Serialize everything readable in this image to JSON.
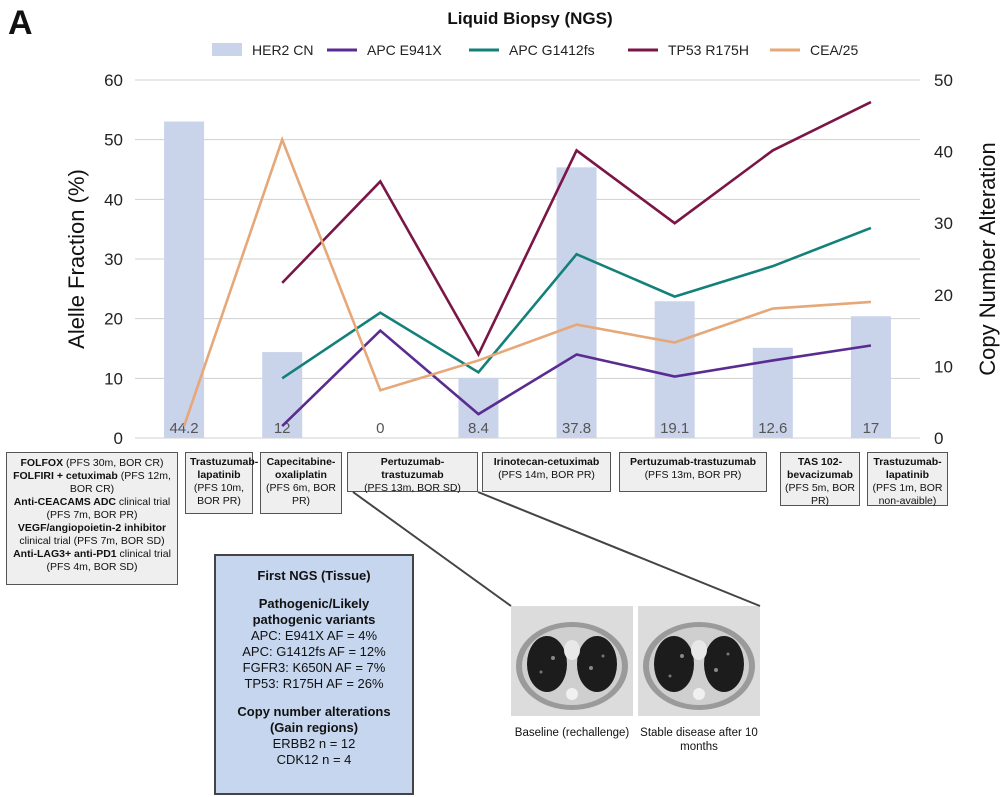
{
  "panel_letter": "A",
  "chart_data": {
    "type": "bar",
    "title": "Liquid Biopsy (NGS)",
    "ylabel": "Alelle Fraction (%)",
    "y2label": "Copy Number Alteration",
    "ylim": [
      0,
      60
    ],
    "y2lim": [
      0,
      50
    ],
    "yticks": [
      0,
      10,
      20,
      30,
      40,
      50,
      60
    ],
    "y2ticks": [
      0,
      10,
      20,
      30,
      40,
      50
    ],
    "grid": true,
    "legend_position": "top",
    "bar_series": {
      "name": "HER2 CN",
      "axis": "right",
      "color": "#c9d3ea",
      "values": [
        44.2,
        12,
        0,
        8.4,
        37.8,
        19.1,
        12.6,
        17
      ],
      "labels": [
        "44.2",
        "12",
        "0",
        "8.4",
        "37.8",
        "19.1",
        "12.6",
        "17"
      ]
    },
    "line_series": [
      {
        "name": "APC E941X",
        "axis": "left",
        "color": "#5a2b91",
        "values": [
          null,
          2,
          18,
          4,
          14,
          10.3,
          13,
          15.5
        ]
      },
      {
        "name": "APC G1412fs",
        "axis": "left",
        "color": "#13807a",
        "values": [
          null,
          10,
          21,
          11,
          30.8,
          23.7,
          28.8,
          35.2
        ]
      },
      {
        "name": "TP53 R175H",
        "axis": "left",
        "color": "#7a1646",
        "values": [
          null,
          26,
          43,
          14,
          48.2,
          36,
          48.2,
          56.3
        ]
      },
      {
        "name": "CEA/25",
        "axis": "left",
        "color": "#e6a878",
        "values": [
          2,
          50,
          8,
          13,
          19,
          16,
          21.7,
          22.8
        ]
      }
    ]
  },
  "treatments": [
    {
      "lines": [
        {
          "bold": "FOLFOX",
          "text": " (PFS 30m, BOR CR)"
        },
        {
          "bold": "FOLFIRI + cetuximab",
          "text": " (PFS 12m, BOR CR)"
        },
        {
          "bold": "Anti-CEACAMS ADC",
          "text": " clinical trial (PFS 7m, BOR PR)"
        },
        {
          "bold": "VEGF/angiopoietin-2 inhibitor",
          "text": " clinical trial (PFS 7m, BOR SD)"
        },
        {
          "bold": "Anti-LAG3+ anti-PD1",
          "text": " clinical trial (PFS 4m, BOR SD)"
        }
      ]
    },
    {
      "name": "Trastuzumab-lapatinib",
      "detail": "(PFS 10m, BOR PR)"
    },
    {
      "name": "Capecitabine-oxaliplatin",
      "detail": "(PFS 6m, BOR PR)"
    },
    {
      "name": "Pertuzumab-trastuzumab",
      "detail": "(PFS 13m, BOR SD)"
    },
    {
      "name": "Irinotecan-cetuximab",
      "detail": "(PFS 14m, BOR PR)"
    },
    {
      "name": "Pertuzumab-trastuzumab",
      "detail": "(PFS 13m, BOR PR)"
    },
    {
      "name": "TAS 102-bevacizumab",
      "detail": "(PFS 5m, BOR PR)"
    },
    {
      "name": "Trastuzumab-lapatinib",
      "detail": "(PFS 1m, BOR non-avaible)"
    }
  ],
  "first_ngs": {
    "title": "First NGS (Tissue)",
    "variants_heading": "Pathogenic/Likely pathogenic variants",
    "variants": [
      "APC: E941X AF = 4%",
      "APC: G1412fs AF = 12%",
      "FGFR3: K650N AF = 7%",
      "TP53: R175H AF = 26%"
    ],
    "cna_heading": "Copy number alterations (Gain regions)",
    "cna": [
      "ERBB2 n = 12",
      "CDK12 n = 4"
    ]
  },
  "ct_images": [
    {
      "caption": "Baseline (rechallenge)"
    },
    {
      "caption": "Stable disease after 10 months"
    }
  ]
}
